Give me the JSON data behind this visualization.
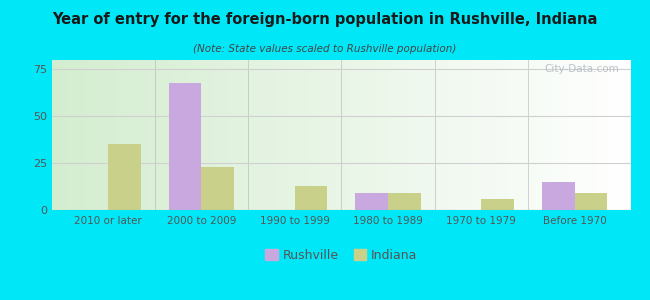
{
  "title": "Year of entry for the foreign-born population in Rushville, Indiana",
  "subtitle": "(Note: State values scaled to Rushville population)",
  "categories": [
    "2010 or later",
    "2000 to 2009",
    "1990 to 1999",
    "1980 to 1989",
    "1970 to 1979",
    "Before 1970"
  ],
  "rushville_values": [
    0,
    68,
    0,
    9,
    0,
    15
  ],
  "indiana_values": [
    35,
    23,
    13,
    9,
    6,
    9
  ],
  "rushville_color": "#c9a8e0",
  "indiana_color": "#c8d08a",
  "bar_width": 0.35,
  "ylim": [
    0,
    80
  ],
  "yticks": [
    0,
    25,
    50,
    75
  ],
  "background_outer": "#00e8f8",
  "background_plot_top_left": "#d4edd0",
  "background_plot_top_right": "#ffffff",
  "background_plot_bottom": "#d4edd0",
  "grid_color": "#d0d0d0",
  "title_color": "#1a1a1a",
  "subtitle_color": "#444444",
  "tick_label_color": "#555555",
  "legend_labels": [
    "Rushville",
    "Indiana"
  ],
  "watermark": "City-Data.com"
}
